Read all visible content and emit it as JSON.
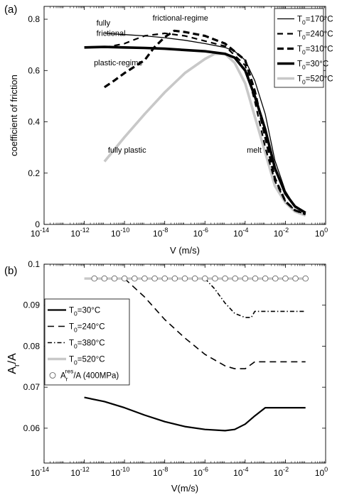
{
  "chart_data": [
    {
      "panel_label": "(a)",
      "type": "line",
      "xlabel": "V (m/s)",
      "ylabel": "coefficient of friction",
      "x_scale": "log",
      "xlim": [
        1e-14,
        1
      ],
      "ylim": [
        0,
        0.85
      ],
      "x_ticks": [
        {
          "m": "10",
          "e": "-14",
          "v": 1e-14
        },
        {
          "m": "10",
          "e": "-12",
          "v": 1e-12
        },
        {
          "m": "10",
          "e": "-10",
          "v": 1e-10
        },
        {
          "m": "10",
          "e": "-8",
          "v": 1e-08
        },
        {
          "m": "10",
          "e": "-6",
          "v": 1e-06
        },
        {
          "m": "10",
          "e": "-4",
          "v": 0.0001
        },
        {
          "m": "10",
          "e": "-2",
          "v": 0.01
        },
        {
          "m": "10",
          "e": "0",
          "v": 1
        }
      ],
      "y_ticks": [
        "0",
        "0.2",
        "0.4",
        "0.6",
        "0.8"
      ],
      "legend_position": "top-right",
      "series": [
        {
          "name": "T0=170°C",
          "sub": "0",
          "label": "=170°C",
          "color": "#000000",
          "width": 1.3,
          "dash": "",
          "x": [
            1e-11,
            1e-10,
            1e-09,
            1e-08,
            1e-07,
            1e-06,
            1e-05,
            3e-05,
            0.0001,
            0.0003,
            0.001,
            0.003,
            0.01,
            0.03,
            0.1
          ],
          "y": [
            0.745,
            0.74,
            0.735,
            0.728,
            0.718,
            0.705,
            0.69,
            0.675,
            0.64,
            0.56,
            0.43,
            0.25,
            0.13,
            0.07,
            0.045
          ]
        },
        {
          "name": "T0=240°C",
          "sub": "0",
          "label": "=240°C",
          "color": "#000000",
          "width": 2.2,
          "dash": "8,6",
          "x": [
            1e-11,
            1e-10,
            3e-10,
            1e-09,
            1e-08,
            1e-07,
            1e-06,
            1e-05,
            0.0001,
            0.0003,
            0.001,
            0.003,
            0.01,
            0.03,
            0.1
          ],
          "y": [
            0.69,
            0.705,
            0.72,
            0.735,
            0.745,
            0.735,
            0.715,
            0.695,
            0.62,
            0.48,
            0.3,
            0.17,
            0.09,
            0.055,
            0.04
          ]
        },
        {
          "name": "T0=310°C",
          "sub": "0",
          "label": "=310°C",
          "color": "#000000",
          "width": 3.2,
          "dash": "9,5",
          "x": [
            1e-11,
            3e-11,
            1e-10,
            1e-09,
            3e-09,
            1e-08,
            3e-08,
            1e-07,
            1e-06,
            1e-05,
            0.0001,
            0.0003,
            0.001,
            0.003,
            0.01,
            0.03,
            0.1
          ],
          "y": [
            0.535,
            0.56,
            0.59,
            0.64,
            0.69,
            0.73,
            0.755,
            0.75,
            0.735,
            0.705,
            0.64,
            0.52,
            0.34,
            0.18,
            0.09,
            0.055,
            0.04
          ]
        },
        {
          "name": "T0=30°C",
          "sub": "0",
          "label": "=30°C",
          "color": "#000000",
          "width": 3.6,
          "dash": "",
          "x": [
            1e-12,
            1e-11,
            1e-10,
            1e-09,
            1e-08,
            1e-07,
            1e-06,
            1e-05,
            3e-05,
            0.0001,
            0.0003,
            0.001,
            0.003,
            0.01,
            0.03,
            0.1
          ],
          "y": [
            0.69,
            0.692,
            0.69,
            0.688,
            0.685,
            0.68,
            0.675,
            0.665,
            0.65,
            0.6,
            0.5,
            0.37,
            0.22,
            0.12,
            0.07,
            0.045
          ]
        },
        {
          "name": "T0=520°C",
          "sub": "0",
          "label": "=520°C",
          "color": "#c8c8c8",
          "width": 3.6,
          "dash": "",
          "x": [
            1e-11,
            1e-10,
            1e-09,
            1e-08,
            1e-07,
            1e-06,
            3e-06,
            1e-05,
            3e-05,
            0.0001,
            0.0003,
            0.001,
            0.003,
            0.01,
            0.03,
            0.1
          ],
          "y": [
            0.245,
            0.34,
            0.43,
            0.515,
            0.59,
            0.645,
            0.665,
            0.665,
            0.63,
            0.55,
            0.42,
            0.28,
            0.15,
            0.085,
            0.05,
            0.035
          ]
        }
      ],
      "annotations": [
        {
          "text": "fully",
          "x": 4e-12,
          "y": 0.775
        },
        {
          "text": "frictional",
          "x": 4e-12,
          "y": 0.735
        },
        {
          "text": "frictional-regime",
          "x": 2.5e-09,
          "y": 0.795
        },
        {
          "text": "plastic-regime",
          "x": 3e-12,
          "y": 0.62
        },
        {
          "text": "fully plastic",
          "x": 1.5e-11,
          "y": 0.28
        },
        {
          "text": "melt",
          "x": 0.00012,
          "y": 0.28
        }
      ]
    },
    {
      "panel_label": "(b)",
      "type": "line",
      "xlabel": "V(m/s)",
      "ylabel": "A",
      "ylabel_sub": "r",
      "ylabel_suffix": "/A",
      "x_scale": "log",
      "xlim": [
        1e-14,
        1
      ],
      "ylim": [
        0.0515,
        0.1
      ],
      "x_ticks": [
        {
          "m": "10",
          "e": "-14",
          "v": 1e-14
        },
        {
          "m": "10",
          "e": "-12",
          "v": 1e-12
        },
        {
          "m": "10",
          "e": "-10",
          "v": 1e-10
        },
        {
          "m": "10",
          "e": "-8",
          "v": 1e-08
        },
        {
          "m": "10",
          "e": "-6",
          "v": 1e-06
        },
        {
          "m": "10",
          "e": "-4",
          "v": 0.0001
        },
        {
          "m": "10",
          "e": "-2",
          "v": 0.01
        },
        {
          "m": "10",
          "e": "0",
          "v": 1
        }
      ],
      "y_ticks": [
        "0.06",
        "0.07",
        "0.08",
        "0.09",
        "0.1"
      ],
      "legend_position": "left",
      "series": [
        {
          "name": "T0=30°C",
          "sub": "0",
          "label": "=30°C",
          "color": "#000000",
          "width": 2.2,
          "dash": "",
          "x": [
            1e-12,
            1e-11,
            1e-10,
            1e-09,
            1e-08,
            1e-07,
            1e-06,
            1e-05,
            3e-05,
            0.0001,
            0.0003,
            0.001,
            0.01,
            0.1
          ],
          "y": [
            0.0675,
            0.0665,
            0.065,
            0.0632,
            0.0616,
            0.0604,
            0.0597,
            0.0594,
            0.0597,
            0.061,
            0.063,
            0.065,
            0.065,
            0.065
          ]
        },
        {
          "name": "T0=240°C",
          "sub": "0",
          "label": "=240°C",
          "color": "#000000",
          "width": 1.6,
          "dash": "9,6",
          "x": [
            1e-10,
            1e-09,
            1e-08,
            1e-07,
            1e-06,
            1e-05,
            3e-05,
            0.0001,
            0.0003,
            0.001,
            0.01,
            0.1
          ],
          "y": [
            0.0965,
            0.092,
            0.0865,
            0.082,
            0.078,
            0.0752,
            0.0745,
            0.0745,
            0.0762,
            0.0762,
            0.0762,
            0.0762
          ]
        },
        {
          "name": "T0=380°C",
          "sub": "0",
          "label": "=380°C",
          "color": "#000000",
          "width": 1.6,
          "dash": "6,3,1.5,3",
          "x": [
            1e-06,
            3e-06,
            1e-05,
            3e-05,
            0.0001,
            0.0002,
            0.0003,
            0.001,
            0.01,
            0.1
          ],
          "y": [
            0.0965,
            0.094,
            0.0905,
            0.088,
            0.087,
            0.087,
            0.0885,
            0.0885,
            0.0885,
            0.0885
          ]
        },
        {
          "name": "T0=520°C",
          "sub": "0",
          "label": "=520°C",
          "color": "#c8c8c8",
          "width": 3.4,
          "dash": "",
          "x": [
            1e-12,
            1e-10,
            1e-08,
            1e-06,
            0.0001,
            0.01,
            0.1
          ],
          "y": [
            0.0965,
            0.0965,
            0.0965,
            0.0965,
            0.0965,
            0.0965,
            0.0965
          ]
        }
      ],
      "markers": {
        "name": "A_r^res/A (400MPa)",
        "label_main": "A",
        "label_sub": "r",
        "label_sup": "res",
        "label_tail": "/A (400MPa)",
        "y": 0.0965,
        "x_log_start": -11.5,
        "x_log_end": -1,
        "x_log_step": 0.5
      }
    }
  ]
}
